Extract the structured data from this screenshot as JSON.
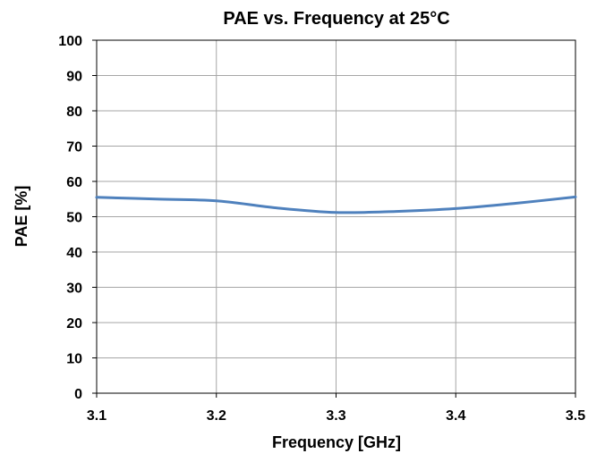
{
  "chart_data": {
    "type": "line",
    "title": "PAE vs. Frequency at 25°C",
    "xlabel": "Frequency [GHz]",
    "ylabel": "PAE [%]",
    "xlim": [
      3.1,
      3.5
    ],
    "ylim": [
      0,
      100
    ],
    "x_ticks": [
      "3.1",
      "3.2",
      "3.3",
      "3.4",
      "3.5"
    ],
    "y_ticks": [
      "0",
      "10",
      "20",
      "30",
      "40",
      "50",
      "60",
      "70",
      "80",
      "90",
      "100"
    ],
    "grid": true,
    "legend": "none",
    "series": [
      {
        "color": "#4f81bd",
        "x": [
          3.1,
          3.15,
          3.2,
          3.25,
          3.3,
          3.35,
          3.4,
          3.45,
          3.5
        ],
        "y": [
          55.5,
          55.0,
          54.5,
          52.5,
          51.2,
          51.5,
          52.3,
          53.8,
          55.6
        ]
      }
    ]
  }
}
